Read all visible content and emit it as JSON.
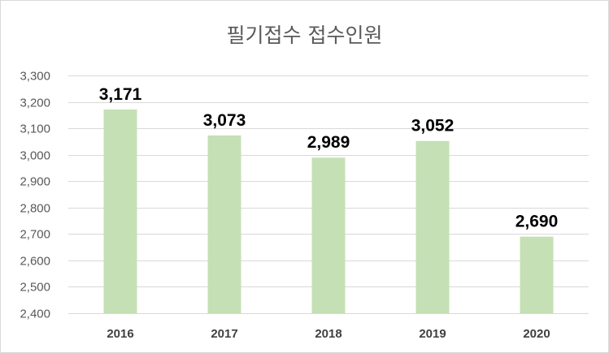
{
  "chart_data": {
    "type": "bar",
    "title": "필기접수 접수인원",
    "categories": [
      "2016",
      "2017",
      "2018",
      "2019",
      "2020"
    ],
    "values": [
      3171,
      3073,
      2989,
      3052,
      2690
    ],
    "data_labels": [
      "3,171",
      "3,073",
      "2,989",
      "3,052",
      "2,690"
    ],
    "ylim": [
      2400,
      3300
    ],
    "yticks": [
      2400,
      2500,
      2600,
      2700,
      2800,
      2900,
      3000,
      3100,
      3200,
      3300
    ],
    "ytick_labels": [
      "2,400",
      "2,500",
      "2,600",
      "2,700",
      "2,800",
      "2,900",
      "3,000",
      "3,100",
      "3,200",
      "3,300"
    ],
    "grid": true,
    "legend": "none",
    "bar_color": "#c5e0b4",
    "gridline_color": "#d9d9d9"
  }
}
